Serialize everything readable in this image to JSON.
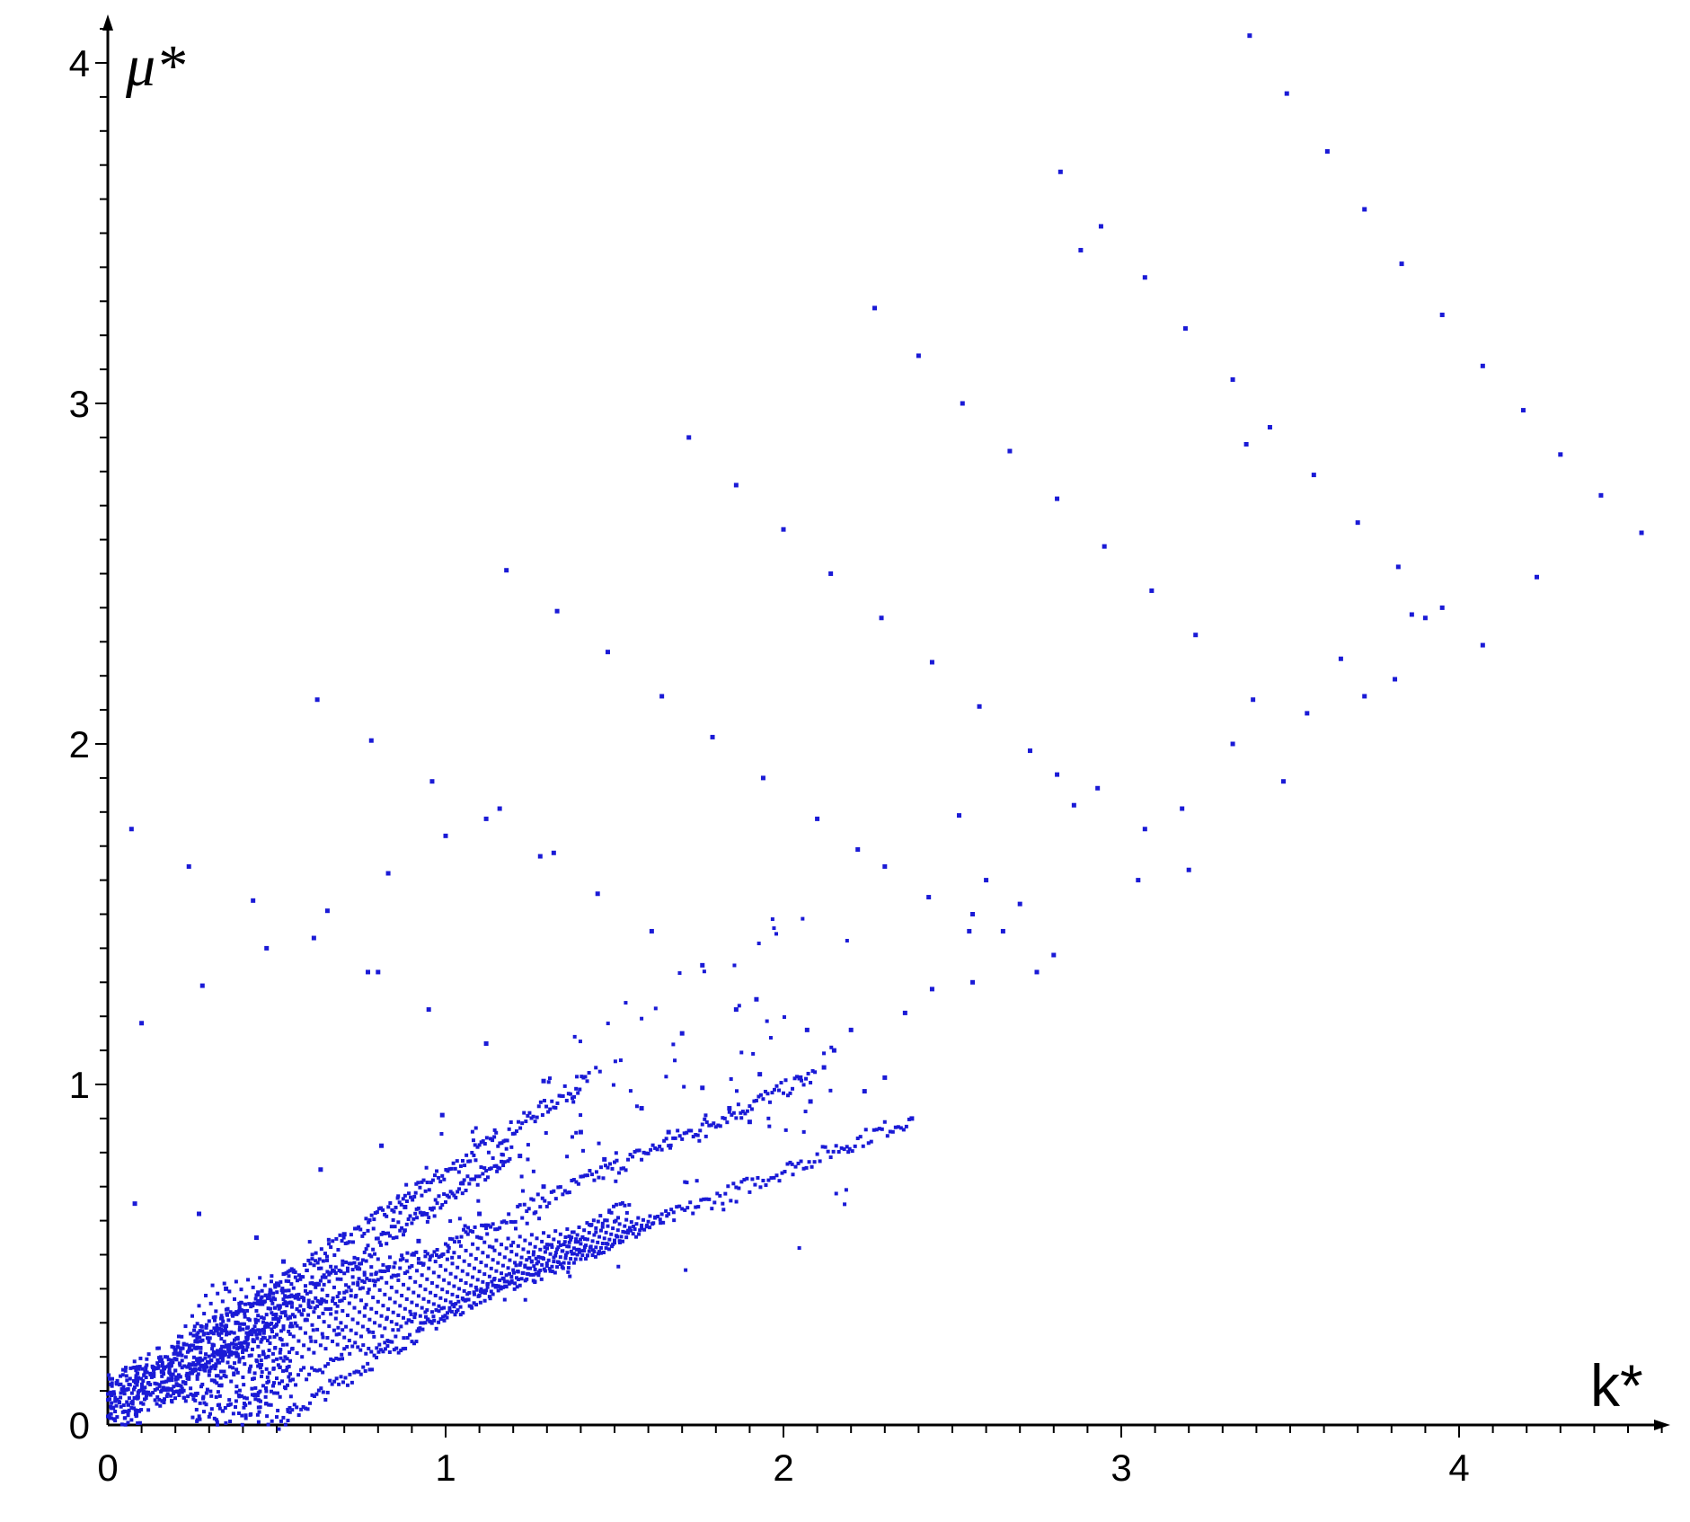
{
  "chart_data": {
    "type": "scatter",
    "title": "",
    "xlabel": "k*",
    "ylabel": "μ*",
    "xlim": [
      0,
      4.6
    ],
    "ylim": [
      0,
      4.1
    ],
    "x_ticks": [
      0,
      1,
      2,
      3,
      4
    ],
    "y_ticks": [
      0,
      1,
      2,
      3,
      4
    ],
    "x_tick_labels": [
      "0",
      "1",
      "2",
      "3",
      "4"
    ],
    "y_tick_labels": [
      "0",
      "1",
      "2",
      "3",
      "4"
    ],
    "grid": false,
    "legend": "none",
    "marker_color": "#1a1ad6",
    "series": [
      {
        "x": [
          3.38,
          3.49,
          3.61,
          3.72,
          3.83,
          3.95,
          4.07,
          4.19,
          4.3,
          4.42,
          4.54,
          2.82,
          2.94,
          2.88,
          3.07,
          3.19,
          3.33,
          3.37,
          3.44,
          2.27,
          2.4,
          2.53,
          2.67,
          2.81,
          2.95,
          3.09,
          3.22,
          1.72,
          1.86,
          2.0,
          2.14,
          2.29,
          2.44,
          2.58,
          2.73,
          2.81,
          3.57,
          3.7,
          3.82,
          3.86,
          3.95,
          4.07,
          4.23,
          1.18,
          1.33,
          1.48,
          1.64,
          1.79,
          1.94,
          2.1,
          2.22,
          2.3,
          2.43,
          2.56,
          2.65,
          2.8,
          2.93,
          3.07,
          3.2,
          3.33,
          3.39,
          3.48,
          3.55,
          3.65,
          3.72,
          3.81,
          3.9,
          0.62,
          0.78,
          0.8,
          0.96,
          1.12,
          1.28,
          1.45,
          1.61,
          1.76,
          1.92,
          2.07,
          2.15,
          2.3,
          2.44,
          2.56,
          0.07,
          0.24,
          0.43,
          0.61,
          0.77,
          0.95,
          1.12,
          1.29,
          0.1,
          0.28,
          0.47,
          0.65,
          0.83,
          1.0,
          1.16,
          1.32,
          2.52,
          2.6,
          2.75,
          2.86,
          3.05,
          3.18,
          1.7,
          1.86,
          2.05,
          2.2,
          2.36,
          2.55,
          2.7,
          0.08,
          0.27,
          0.44,
          0.63,
          0.81,
          0.99,
          0.35,
          0.52,
          0.7,
          0.88,
          1.05,
          1.22,
          1.4,
          1.58,
          1.76,
          1.93,
          2.12,
          0.2,
          0.38,
          0.56,
          0.74,
          0.92,
          1.1,
          1.29,
          1.47,
          1.66,
          1.84,
          1.9,
          2.08,
          2.24,
          2.38
        ],
        "y": [
          4.08,
          3.91,
          3.74,
          3.57,
          3.41,
          3.26,
          3.11,
          2.98,
          2.85,
          2.73,
          2.62,
          3.68,
          3.52,
          3.45,
          3.37,
          3.22,
          3.07,
          2.88,
          2.93,
          3.28,
          3.14,
          3.0,
          2.86,
          2.72,
          2.58,
          2.45,
          2.32,
          2.9,
          2.76,
          2.63,
          2.5,
          2.37,
          2.24,
          2.11,
          1.98,
          1.91,
          2.79,
          2.65,
          2.52,
          2.38,
          2.4,
          2.29,
          2.49,
          2.51,
          2.39,
          2.27,
          2.14,
          2.02,
          1.9,
          1.78,
          1.69,
          1.64,
          1.55,
          1.5,
          1.45,
          1.38,
          1.87,
          1.75,
          1.63,
          2.0,
          2.13,
          1.89,
          2.09,
          2.25,
          2.14,
          2.19,
          2.37,
          2.13,
          2.01,
          1.33,
          1.89,
          1.78,
          1.67,
          1.56,
          1.45,
          1.35,
          1.25,
          1.16,
          1.1,
          1.02,
          1.28,
          1.3,
          1.75,
          1.64,
          1.54,
          1.43,
          1.33,
          1.22,
          1.12,
          1.01,
          1.18,
          1.29,
          1.4,
          1.51,
          1.62,
          1.73,
          1.81,
          1.68,
          1.79,
          1.6,
          1.33,
          1.82,
          1.6,
          1.81,
          1.15,
          1.22,
          1.02,
          1.16,
          1.21,
          1.45,
          1.53,
          0.65,
          0.62,
          0.55,
          0.75,
          0.82,
          0.91,
          0.4,
          0.48,
          0.56,
          0.64,
          0.71,
          0.79,
          0.86,
          0.93,
          0.99,
          1.03,
          1.05,
          0.22,
          0.3,
          0.38,
          0.46,
          0.54,
          0.62,
          0.7,
          0.78,
          0.86,
          0.93,
          0.89,
          0.95,
          0.98,
          0.9
        ]
      }
    ]
  }
}
